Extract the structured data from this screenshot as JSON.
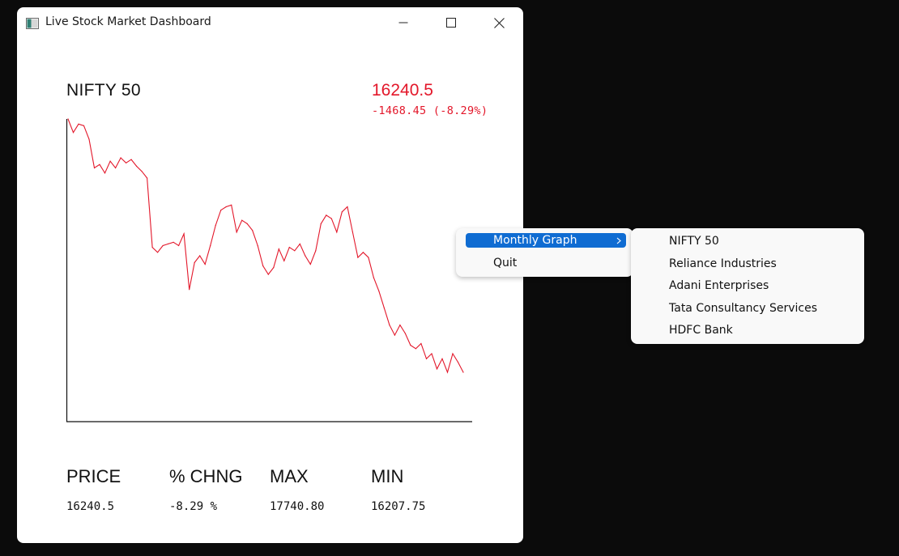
{
  "window": {
    "title": "Live Stock Market Dashboard",
    "controls": [
      "minimize",
      "maximize",
      "close"
    ]
  },
  "dashboard": {
    "index_name": "NIFTY 50",
    "price": "16240.5",
    "change": "-1468.45 (-8.29%)",
    "line_color": "#e3172a",
    "stats": [
      {
        "label": "PRICE",
        "value": "16240.5"
      },
      {
        "label": "% CHNG",
        "value": "-8.29 %"
      },
      {
        "label": "MAX",
        "value": "17740.80"
      },
      {
        "label": "MIN",
        "value": "16207.75"
      }
    ]
  },
  "chart_data": {
    "type": "line",
    "series": [
      {
        "values": [
          17740,
          17660,
          17710,
          17700,
          17620,
          17450,
          17470,
          17420,
          17490,
          17450,
          17510,
          17480,
          17500,
          17460,
          17430,
          17390,
          16980,
          16950,
          16990,
          17000,
          17010,
          16990,
          17060,
          16730,
          16890,
          16930,
          16880,
          16990,
          17110,
          17200,
          17220,
          17230,
          17070,
          17140,
          17120,
          17080,
          16990,
          16870,
          16820,
          16860,
          16970,
          16900,
          16980,
          16960,
          17000,
          16930,
          16880,
          16960,
          17120,
          17170,
          17150,
          17070,
          17190,
          17220,
          17070,
          16920,
          16950,
          16920,
          16800,
          16720,
          16620,
          16520,
          16460,
          16520,
          16470,
          16400,
          16380,
          16410,
          16320,
          16350,
          16260,
          16320,
          16240,
          16350,
          16300,
          16240
        ]
      }
    ],
    "xlabel": "",
    "ylabel": "",
    "grid": false
  },
  "context_menu": {
    "items": [
      {
        "label": "Monthly Graph",
        "has_submenu": true,
        "active": true
      },
      {
        "label": "Quit",
        "has_submenu": false,
        "active": false
      }
    ],
    "submenu": [
      {
        "label": "NIFTY 50"
      },
      {
        "label": "Reliance Industries"
      },
      {
        "label": "Adani Enterprises"
      },
      {
        "label": "Tata Consultancy Services"
      },
      {
        "label": "HDFC Bank"
      }
    ]
  }
}
